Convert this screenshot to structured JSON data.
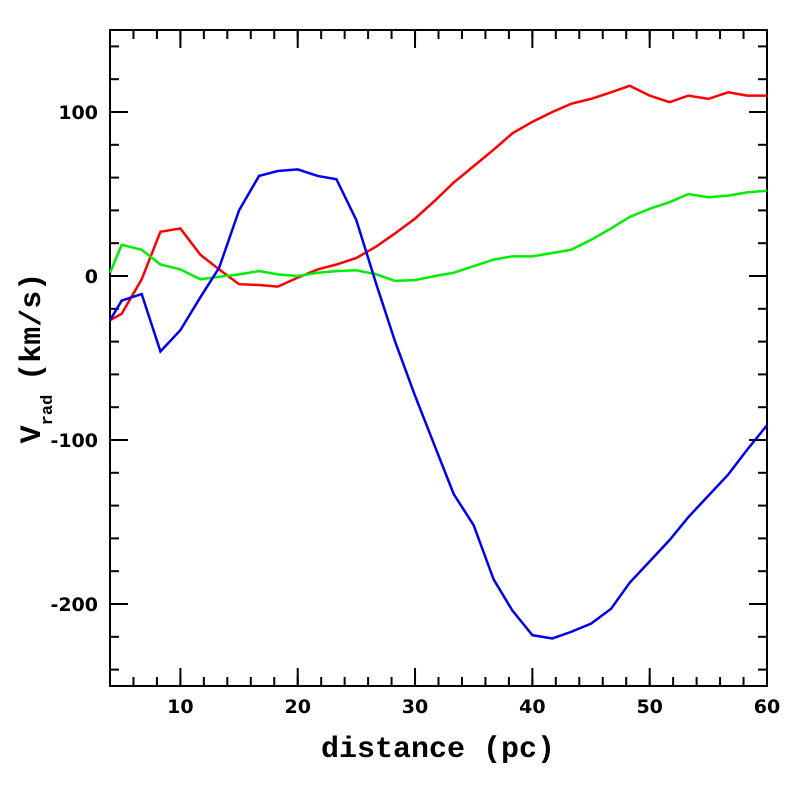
{
  "chart_data": {
    "type": "line",
    "xlabel": "distance (pc)",
    "ylabel": {
      "main": "V",
      "sub": "rad",
      "unit": "(km/s)"
    },
    "x": [
      4,
      5,
      6.7,
      8.3,
      10,
      11.7,
      13.3,
      15,
      16.7,
      18.3,
      20,
      21.7,
      23.3,
      25,
      26.7,
      28.3,
      30,
      31.7,
      33.3,
      35,
      36.7,
      38.3,
      40,
      41.7,
      43.3,
      45,
      46.7,
      48.3,
      50,
      51.7,
      53.3,
      55,
      56.7,
      58.3,
      60
    ],
    "series": [
      {
        "color": "#ff0000",
        "values": [
          -27,
          -23,
          -2,
          27,
          29,
          13,
          4,
          -5,
          -5.5,
          -6.5,
          -1,
          4,
          7,
          11,
          18,
          26,
          35,
          46,
          57,
          67,
          77,
          87,
          94,
          100,
          105,
          108,
          112,
          116,
          110,
          106,
          110,
          108,
          112,
          110,
          110
        ]
      },
      {
        "color": "#00ee00",
        "values": [
          2,
          19,
          16,
          7,
          4,
          -2,
          -0.5,
          1,
          3,
          1,
          0,
          2,
          3,
          3.5,
          1,
          -3,
          -2.5,
          0,
          2,
          6,
          10,
          12,
          12,
          14,
          16,
          22,
          29,
          36,
          41,
          45,
          50,
          48,
          49,
          51,
          52
        ]
      },
      {
        "color": "#0000ee",
        "values": [
          -27,
          -15,
          -11,
          -46,
          -33,
          -13,
          5,
          40,
          61,
          64,
          65,
          61,
          59,
          34,
          -5,
          -40,
          -73,
          -104,
          -133,
          -152,
          -185,
          -204,
          -219,
          -221,
          -217,
          -212,
          -203,
          -187,
          -174,
          -161,
          -147,
          -134,
          -121,
          -106,
          -91
        ]
      }
    ],
    "xlim": [
      4,
      60
    ],
    "xticks": [
      10,
      20,
      30,
      40,
      50,
      60
    ],
    "ylim": [
      -250,
      150
    ],
    "yticks": [
      -200,
      -100,
      0,
      100
    ]
  }
}
